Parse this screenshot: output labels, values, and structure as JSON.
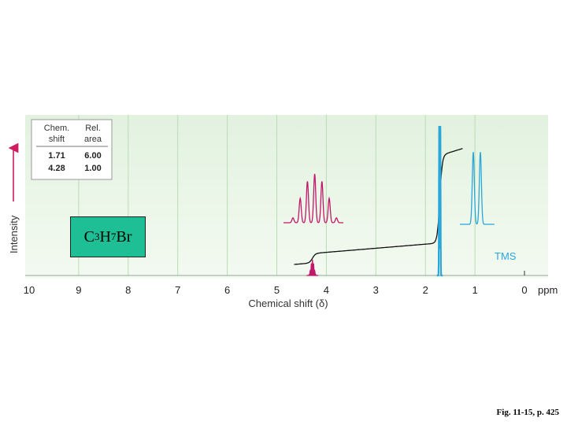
{
  "chart_data": {
    "type": "line",
    "title": "",
    "xlabel": "Chemical shift (δ)",
    "ylabel": "Intensity",
    "x_unit": "ppm",
    "xlim": [
      10,
      0
    ],
    "x_reversed": true,
    "x_ticks": [
      "10",
      "9",
      "8",
      "7",
      "6",
      "5",
      "4",
      "3",
      "2",
      "1",
      "0"
    ],
    "grid": true,
    "table": {
      "headers": [
        [
          "Chem.",
          "shift"
        ],
        [
          "Rel.",
          "area"
        ]
      ],
      "rows": [
        [
          "1.71",
          "6.00"
        ],
        [
          "4.28",
          "1.00"
        ]
      ]
    },
    "peaks": [
      {
        "shift": 1.71,
        "relative_area": 6.0,
        "multiplicity": "doublet",
        "color": "#2aa7d8"
      },
      {
        "shift": 4.28,
        "relative_area": 1.0,
        "multiplicity": "septet",
        "color": "#c2186b"
      }
    ],
    "reference_label": "TMS",
    "reference_shift": 0
  },
  "formula": {
    "c": "C",
    "c_n": "3",
    "h": "H",
    "h_n": "7",
    "br": "Br"
  },
  "caption": "Fig. 11-15, p. 425",
  "colors": {
    "panel": "#e6f4e4",
    "grid": "#b9dcb4",
    "blue_peak": "#2aa7d8",
    "magenta_peak": "#c2186b",
    "axis_arrow": "#d01c5e",
    "formula_box": "#1fbf95"
  }
}
